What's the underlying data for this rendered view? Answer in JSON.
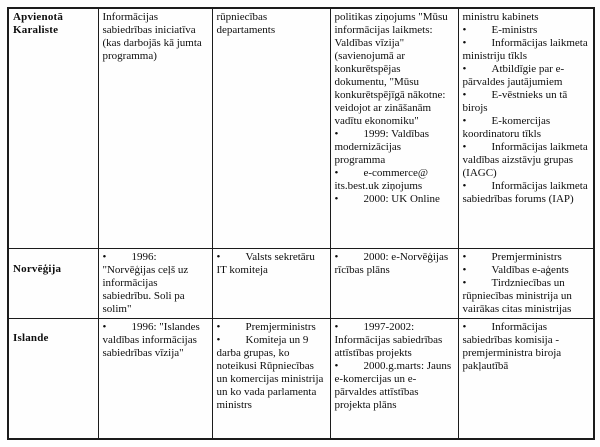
{
  "colors": {
    "background": "#fefefe",
    "text": "#0d0d0d",
    "border": "#1c1c1c"
  },
  "table": {
    "bullet_char": "•",
    "rows": [
      {
        "country": "Apvienotā Karaliste",
        "cells": [
          [
            {
              "bullet": false,
              "text": "Informācijas sabiedrības iniciatīva (kas darbojās kā jumta programma)"
            }
          ],
          [
            {
              "bullet": false,
              "text": "rūpniecības departaments"
            }
          ],
          [
            {
              "bullet": false,
              "text": "politikas ziņojums \"Mūsu informācijas laikmets: Valdības vīzija\" (savienojumā ar konkurētspējas dokumentu, \"Mūsu konkurētspējīgā nākotne: veidojot ar zināšanām vadītu ekonomiku\""
            },
            {
              "bullet": true,
              "text": "1999: Valdības modernizācijas programma"
            },
            {
              "bullet": true,
              "text": "e-commerce@ its.best.uk ziņojums"
            },
            {
              "bullet": true,
              "text": "2000: UK Online"
            }
          ],
          [
            {
              "bullet": false,
              "text": "ministru kabinets"
            },
            {
              "bullet": true,
              "text": "E-ministrs"
            },
            {
              "bullet": true,
              "text": "Informācijas laikmeta ministriju tīkls"
            },
            {
              "bullet": true,
              "text": "Atbildīgie par e-pārvaldes jautājumiem"
            },
            {
              "bullet": true,
              "text": "E-vēstnieks un tā birojs"
            },
            {
              "bullet": true,
              "text": "E-komercijas koordinatoru tīkls"
            },
            {
              "bullet": true,
              "text": "Informācijas laikmeta valdības aizstāvju grupas (IAGC)"
            },
            {
              "bullet": true,
              "text": "Informācijas laikmeta sabiedrības forums (IAP)"
            }
          ]
        ]
      },
      {
        "country": "Norvēģija",
        "cells": [
          [
            {
              "bullet": true,
              "text": "1996: \"Norvēģijas ceļš uz informācijas sabiedrību. Soli pa solim\""
            }
          ],
          [
            {
              "bullet": true,
              "text": "Valsts sekretāru IT komiteja"
            }
          ],
          [
            {
              "bullet": true,
              "text": "2000: e-Norvēģijas rīcības plāns"
            }
          ],
          [
            {
              "bullet": true,
              "text": "Premjerministrs"
            },
            {
              "bullet": true,
              "text": "Valdības e-aģents"
            },
            {
              "bullet": true,
              "text": "Tirdzniecības un rūpniecības ministrija un vairākas citas ministrijas"
            }
          ]
        ]
      },
      {
        "country": "Islande",
        "cells": [
          [
            {
              "bullet": true,
              "text": "1996: \"Islandes valdības informācijas sabiedrības vīzija\""
            }
          ],
          [
            {
              "bullet": true,
              "text": "Premjerministrs"
            },
            {
              "bullet": true,
              "text": "Komiteja un 9 darba grupas, ko noteikusi Rūpniecības un komercijas ministrija un ko vada parlamenta ministrs"
            }
          ],
          [
            {
              "bullet": true,
              "text": "1997-2002: Informācijas sabiedrības attīstības projekts"
            },
            {
              "bullet": true,
              "text": "2000.g.marts: Jauns e-komercijas un e-pārvaldes attīstības projekta plāns"
            }
          ],
          [
            {
              "bullet": true,
              "text": "Informācijas sabiedrības komisija - premjerministra biroja pakļautībā"
            }
          ]
        ]
      }
    ]
  }
}
